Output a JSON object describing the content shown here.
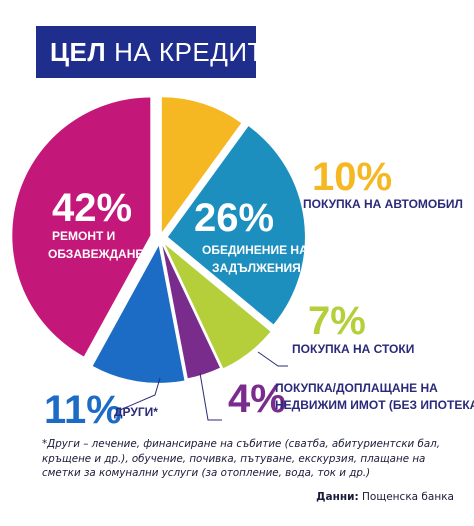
{
  "title": {
    "bold": "ЦЕЛ",
    "light": "НА КРЕДИТА"
  },
  "chart_data": {
    "type": "pie",
    "title": "ЦЕЛ НА КРЕДИТА",
    "slices": [
      {
        "pct": "10%",
        "value": 10,
        "label": "ПОКУПКА НА АВТОМОБИЛ",
        "color": "#f5b722"
      },
      {
        "pct": "26%",
        "value": 26,
        "label": "ОБЕДИНЕНИЕ НА ЗАДЪЛЖЕНИЯ",
        "color": "#1d8fbf"
      },
      {
        "pct": "7%",
        "value": 7,
        "label": "ПОКУПКА НА СТОКИ",
        "color": "#b4cf3a"
      },
      {
        "pct": "4%",
        "value": 4,
        "label": "ПОКУПКА/ДОПЛАЩАНЕ НА НЕДВИЖИМ ИМОТ (БЕЗ ИПОТЕКА)",
        "color": "#7a2c8c"
      },
      {
        "pct": "11%",
        "value": 11,
        "label": "ДРУГИ*",
        "color": "#1c6bc4"
      },
      {
        "pct": "42%",
        "value": 42,
        "label": "РЕМОНТ И ОБЗАВЕЖДАНЕ",
        "color": "#c4177a"
      }
    ]
  },
  "labels": {
    "auto_pct": "10%",
    "auto_text": "ПОКУПКА НА АВТОМОБИЛ",
    "debt_pct": "26%",
    "debt_line1": "ОБЕДИНЕНИЕ НА",
    "debt_line2": "ЗАДЪЛЖЕНИЯ",
    "goods_pct": "7%",
    "goods_text": "ПОКУПКА НА СТОКИ",
    "prop_pct": "4%",
    "prop_line1": "ПОКУПКА/ДОПЛАЩАНЕ НА",
    "prop_line2": "НЕДВИЖИМ ИМОТ (БЕЗ ИПОТЕКА)",
    "other_pct": "11%",
    "other_text": "ДРУГИ*",
    "reno_pct": "42%",
    "reno_line1": "РЕМОНТ И",
    "reno_line2": "ОБЗАВЕЖДАНЕ"
  },
  "footnote": "*Други – лечение, финансиране на събитие (сватба, абитуриентски бал, кръщене и др.), обучение, почивка, пътуване, екскурзия, плащане на сметки за комунални услуги (за отопление, вода, ток и др.)",
  "source": {
    "label": "Данни:",
    "value": "Пощенска банка"
  }
}
